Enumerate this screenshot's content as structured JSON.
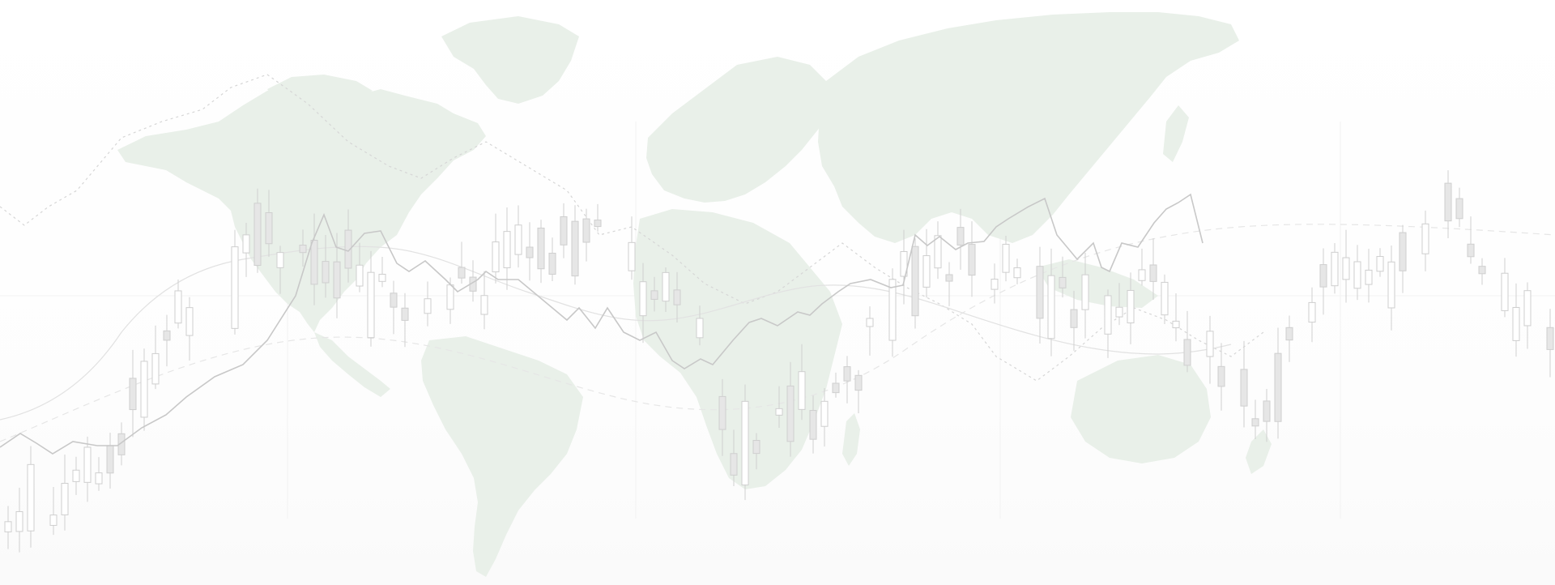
{
  "background": {
    "image_type": "decorative world map with financial candlestick chart overlay",
    "colors": {
      "land": "#e9f0e9",
      "candles": "#e6e6e6",
      "lines": "#c8c8c8",
      "background": "#ffffff"
    }
  }
}
